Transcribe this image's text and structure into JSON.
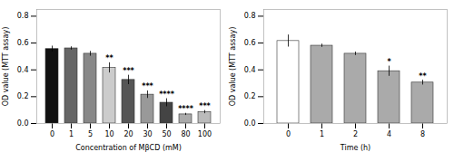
{
  "chart_data": [
    {
      "type": "bar",
      "categories": [
        "0",
        "1",
        "5",
        "10",
        "20",
        "30",
        "50",
        "80",
        "100"
      ],
      "values": [
        0.555,
        0.56,
        0.52,
        0.415,
        0.325,
        0.215,
        0.155,
        0.068,
        0.085
      ],
      "errors": [
        0.022,
        0.012,
        0.018,
        0.038,
        0.035,
        0.028,
        0.03,
        0.008,
        0.012
      ],
      "colors": [
        "#111111",
        "#666666",
        "#888888",
        "#cccccc",
        "#555555",
        "#999999",
        "#444444",
        "#aaaaaa",
        "#bbbbbb"
      ],
      "annotations": [
        null,
        null,
        null,
        "**",
        "***",
        "***",
        "****",
        "****",
        "***"
      ],
      "xlabel": "Concentration of MβCD (mM)",
      "ylabel": "OD value (MTT assay)",
      "ylim": [
        0,
        0.85
      ],
      "yticks": [
        {
          "value": 0,
          "label": "0.0"
        },
        0.2,
        0.4,
        0.6,
        0.8
      ]
    },
    {
      "type": "bar",
      "categories": [
        "0",
        "1",
        "2",
        "4",
        "8"
      ],
      "values": [
        0.615,
        0.58,
        0.52,
        0.39,
        0.305
      ],
      "errors": [
        0.045,
        0.012,
        0.013,
        0.038,
        0.018
      ],
      "colors": [
        "#ffffff",
        "#aaaaaa",
        "#aaaaaa",
        "#aaaaaa",
        "#aaaaaa"
      ],
      "annotations": [
        null,
        null,
        null,
        "*",
        "**"
      ],
      "xlabel": "Time (h)",
      "ylabel": "OD value (MTT assay)",
      "ylim": [
        0,
        0.85
      ],
      "yticks": [
        {
          "value": 0,
          "label": "0.0"
        },
        0.2,
        0.4,
        0.6,
        0.8
      ]
    }
  ]
}
